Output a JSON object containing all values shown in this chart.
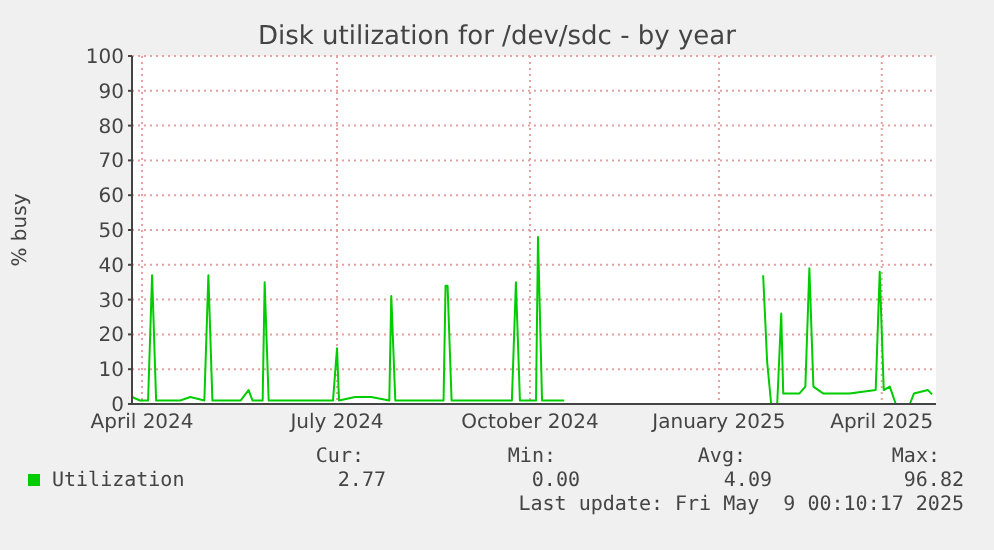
{
  "chart_data": {
    "type": "line",
    "title": "Disk utilization for /dev/sdc - by year",
    "ylabel": "% busy",
    "x": [
      "2024-04-04",
      "2024-04-08",
      "2024-04-12",
      "2024-04-14",
      "2024-04-16",
      "2024-04-28",
      "2024-05-03",
      "2024-05-10",
      "2024-05-12",
      "2024-05-14",
      "2024-05-28",
      "2024-06-01",
      "2024-06-03",
      "2024-06-08",
      "2024-06-09",
      "2024-06-11",
      "2024-07-13",
      "2024-07-15",
      "2024-07-16",
      "2024-07-24",
      "2024-08-01",
      "2024-08-10",
      "2024-08-11",
      "2024-08-13",
      "2024-09-06",
      "2024-09-07",
      "2024-09-08",
      "2024-09-10",
      "2024-10-10",
      "2024-10-12",
      "2024-10-14",
      "2024-10-22",
      "2024-10-23",
      "2024-10-25",
      "2024-11-05",
      "2024-11-06",
      "2025-02-11",
      "2025-02-12",
      "2025-02-14",
      "2025-02-16",
      "2025-02-19",
      "2025-02-21",
      "2025-02-22",
      "2025-03-02",
      "2025-03-05",
      "2025-03-07",
      "2025-03-09",
      "2025-03-14",
      "2025-03-27",
      "2025-04-09",
      "2025-04-11",
      "2025-04-13",
      "2025-04-16",
      "2025-04-19",
      "2025-04-26",
      "2025-04-28",
      "2025-05-05",
      "2025-05-07"
    ],
    "series": [
      {
        "name": "Utilization",
        "color": "#00cc00",
        "values": [
          2,
          1,
          1,
          37,
          1,
          1,
          2,
          1,
          37,
          1,
          1,
          4,
          1,
          1,
          35,
          1,
          1,
          16,
          1,
          2,
          2,
          1,
          31,
          1,
          1,
          34,
          34,
          1,
          1,
          35,
          1,
          1,
          48,
          1,
          1,
          null,
          null,
          37,
          12,
          0,
          0,
          26,
          3,
          3,
          5,
          39,
          5,
          3,
          3,
          4,
          38,
          4,
          5,
          0,
          0,
          3,
          4,
          2.77
        ]
      }
    ],
    "xlim": [
      "2024-04-04",
      "2025-05-09"
    ],
    "xticks": [
      {
        "value": "2024-04-09",
        "label": "April 2024"
      },
      {
        "value": "2024-07-15",
        "label": "July 2024"
      },
      {
        "value": "2024-10-19",
        "label": "October 2024"
      },
      {
        "value": "2025-01-21",
        "label": "January 2025"
      },
      {
        "value": "2025-04-12",
        "label": "April 2025"
      }
    ],
    "ylim": [
      0,
      100
    ],
    "yticks": [
      0,
      10,
      20,
      30,
      40,
      50,
      60,
      70,
      80,
      90,
      100
    ],
    "grid": true,
    "legend": "bottom",
    "marker": "none",
    "line_style": "solid",
    "annotations": [
      "Cur:",
      "Min:",
      "Avg:",
      "Max:",
      "2.77",
      "0.00",
      "4.09",
      "96.82",
      "Last update: Fri May  9 00:10:17 2025"
    ]
  }
}
